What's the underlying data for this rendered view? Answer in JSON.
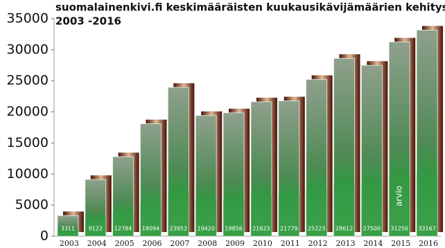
{
  "chart_data": {
    "type": "bar",
    "title": "suomalainenkivi.fi keskimääräisten kuukausikävijämäärien kehitys",
    "subtitle": "2003 -2016",
    "categories": [
      "2003",
      "2004",
      "2005",
      "2006",
      "2007",
      "2008",
      "2009",
      "2010",
      "2011",
      "2012",
      "2013",
      "2014",
      "2015",
      "2016"
    ],
    "values": [
      3311,
      9122,
      12784,
      18094,
      23952,
      19420,
      19856,
      21623,
      21779,
      25223,
      28612,
      27500,
      31250,
      33167
    ],
    "annotations": [
      "arvio"
    ],
    "color": "#3a9a48",
    "ylim": [
      0,
      35000
    ],
    "yticks": [
      0,
      5000,
      10000,
      15000,
      20000,
      25000,
      30000,
      35000
    ],
    "grid": false
  }
}
